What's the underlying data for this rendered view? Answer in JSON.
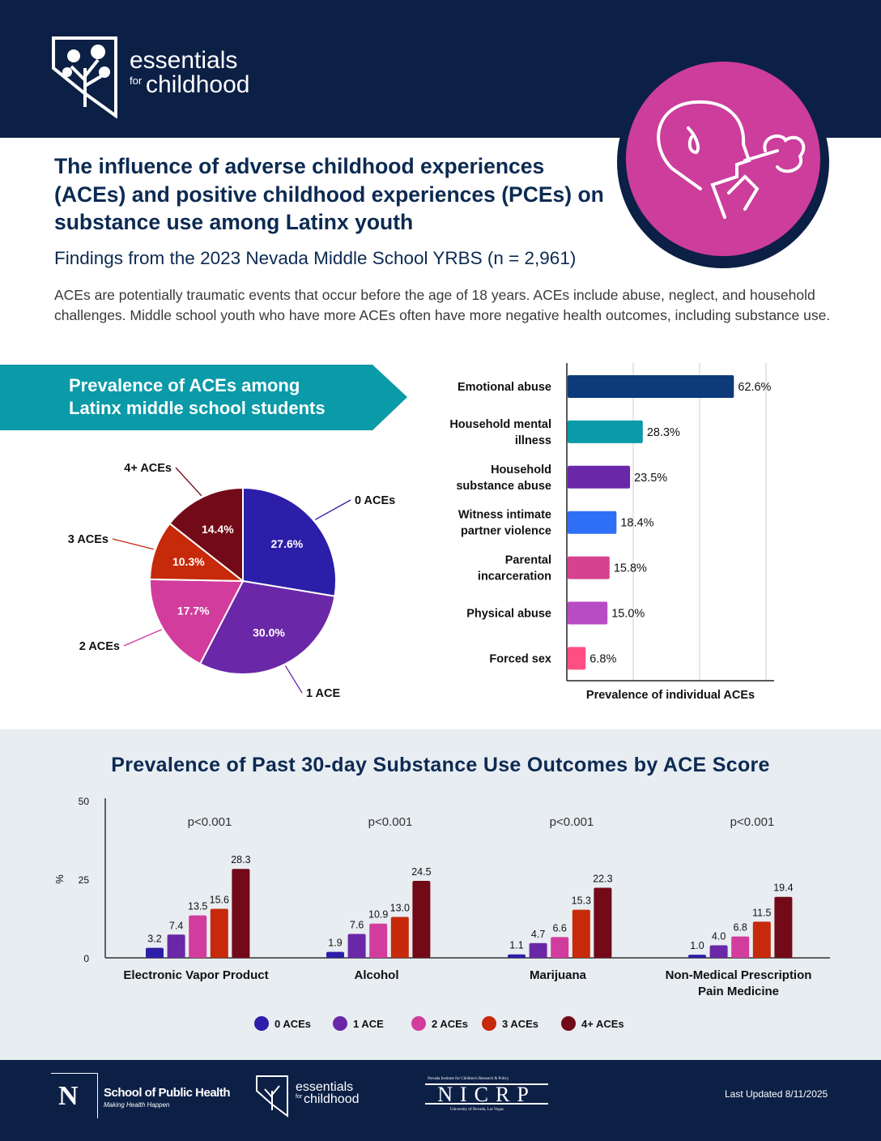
{
  "header": {
    "logo_line1": "essentials",
    "logo_for": "for",
    "logo_line2": "childhood",
    "hero_icon": "child-vaping-icon",
    "colors": {
      "navy": "#0c1f45",
      "pink": "#cc3d9c"
    }
  },
  "title": "The influence of adverse childhood experiences (ACEs) and positive childhood experiences (PCEs) on substance use among Latinx youth",
  "subtitle": "Findings from the 2023 Nevada Middle School YRBS (n = 2,961)",
  "intro": "ACEs are potentially traumatic events that occur before the age of 18 years. ACEs include abuse, neglect, and household challenges. Middle school youth who have more ACEs often have more negative health outcomes, including substance use.",
  "banner": {
    "line1": "Prevalence of ACEs among",
    "line2": "Latinx middle school students"
  },
  "chart_data": [
    {
      "type": "pie",
      "categories": [
        "0 ACEs",
        "1 ACE",
        "2 ACEs",
        "3 ACEs",
        "4+ ACEs"
      ],
      "values": [
        27.6,
        30.0,
        17.7,
        10.3,
        14.4
      ],
      "labels": [
        "27.6%",
        "30.0%",
        "17.7%",
        "10.3%",
        "14.4%"
      ],
      "colors": [
        "#2b1ea8",
        "#6a28a8",
        "#d23c9c",
        "#c62a0a",
        "#720a18"
      ]
    },
    {
      "type": "bar",
      "orientation": "horizontal",
      "categories": [
        [
          "Emotional abuse"
        ],
        [
          "Household mental",
          "illness"
        ],
        [
          "Household",
          "substance abuse"
        ],
        [
          "Witness intimate",
          "partner violence"
        ],
        [
          "Parental",
          "incarceration"
        ],
        [
          "Physical abuse"
        ],
        [
          "Forced sex"
        ]
      ],
      "values": [
        62.6,
        28.3,
        23.5,
        18.4,
        15.8,
        15.0,
        6.8
      ],
      "labels": [
        "62.6%",
        "28.3%",
        "23.5%",
        "18.4%",
        "15.8%",
        "15.0%",
        "6.8%"
      ],
      "colors": [
        "#0d3b7a",
        "#0a9aa8",
        "#6a28a8",
        "#2f6ff5",
        "#d6428f",
        "#b84cc5",
        "#ff4f82"
      ],
      "xlabel": "Prevalence of individual ACEs",
      "xlim": [
        0,
        75
      ],
      "grid": true
    },
    {
      "type": "bar",
      "title": "Prevalence of Past 30-day Substance Use Outcomes by ACE Score",
      "categories": [
        [
          "Electronic Vapor Product"
        ],
        [
          "Alcohol"
        ],
        [
          "Marijuana"
        ],
        [
          "Non-Medical Prescription",
          "Pain Medicine"
        ]
      ],
      "annotations": [
        "p<0.001",
        "p<0.001",
        "p<0.001",
        "p<0.001"
      ],
      "ylabel": "%",
      "ylim": [
        0,
        50
      ],
      "yticks": [
        "0",
        "25",
        "50"
      ],
      "legend": "bottom",
      "series": [
        {
          "name": "0 ACEs",
          "color": "#2b1ea8",
          "values": [
            3.2,
            1.9,
            1.1,
            1.0
          ],
          "labels": [
            "3.2",
            "1.9",
            "1.1",
            "1.0"
          ]
        },
        {
          "name": "1 ACE",
          "color": "#6a28a8",
          "values": [
            7.4,
            7.6,
            4.7,
            4.0
          ],
          "labels": [
            "7.4",
            "7.6",
            "4.7",
            "4.0"
          ]
        },
        {
          "name": "2 ACEs",
          "color": "#d23c9c",
          "values": [
            13.5,
            10.9,
            6.6,
            6.8
          ],
          "labels": [
            "13.5",
            "10.9",
            "6.6",
            "6.8"
          ]
        },
        {
          "name": "3 ACEs",
          "color": "#c62a0a",
          "values": [
            15.6,
            13.0,
            15.3,
            11.5
          ],
          "labels": [
            "15.6",
            "13.0",
            "15.3",
            "11.5"
          ]
        },
        {
          "name": "4+ ACEs",
          "color": "#720a18",
          "values": [
            28.3,
            24.5,
            22.3,
            19.4
          ],
          "labels": [
            "28.3",
            "24.5",
            "22.3",
            "19.4"
          ]
        }
      ]
    }
  ],
  "footer": {
    "sph_name": "School of Public Health",
    "sph_tag": "Making Health Happen",
    "nicrp_top": "Nevada Institute for Children's Research & Policy",
    "nicrp": "NICRP",
    "nicrp_bottom": "University of Nevada, Las Vegas",
    "efc_line1": "essentials",
    "efc_for": "for",
    "efc_line2": "childhood",
    "updated": "Last Updated 8/11/2025"
  }
}
